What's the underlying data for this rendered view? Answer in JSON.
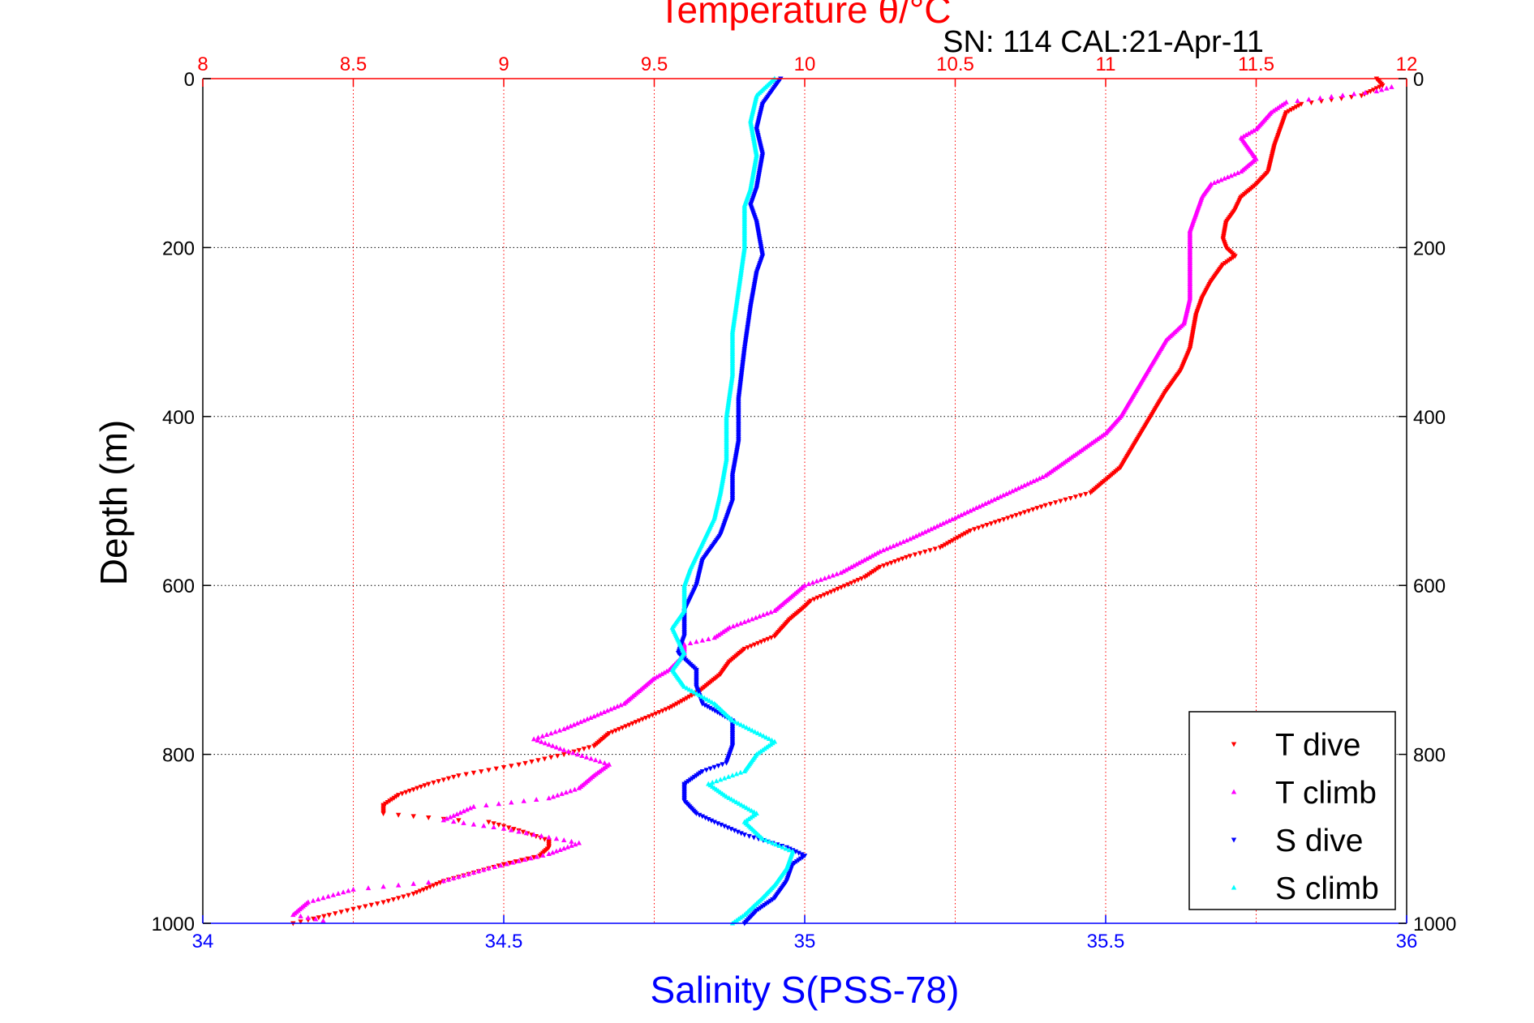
{
  "chart_data": {
    "type": "scatter",
    "title": "Temperature θ/°C",
    "annotation": "SN: 114  CAL:21-Apr-11",
    "ylabel": "Depth (m)",
    "xlabel_bottom": "Salinity S(PSS-78)",
    "xlabel_top": "Temperature θ/°C",
    "ylim": [
      0,
      1000
    ],
    "y_reversed": true,
    "y_ticks": [
      0,
      200,
      400,
      600,
      800,
      1000
    ],
    "x_bottom_lim": [
      34,
      36
    ],
    "x_bottom_ticks": [
      34,
      34.5,
      35,
      35.5,
      36
    ],
    "x_top_lim": [
      8,
      12
    ],
    "x_top_ticks": [
      8,
      8.5,
      9,
      9.5,
      10,
      10.5,
      11,
      11.5,
      12
    ],
    "grid": true,
    "legend_position": "bottom-right",
    "colors": {
      "temperature_axis": "#ff0000",
      "salinity_axis": "#0000ff",
      "t_dive": "#ff0000",
      "t_climb": "#ff00ff",
      "s_dive": "#0000ff",
      "s_climb": "#00ffff",
      "grid_temperature": "#ff0000",
      "grid_depth": "#000000"
    },
    "series": [
      {
        "name": "T dive",
        "axis": "top",
        "marker": "triangle-down",
        "color": "#ff0000",
        "points": [
          [
            11.9,
            0
          ],
          [
            11.92,
            8
          ],
          [
            11.85,
            20
          ],
          [
            11.65,
            30
          ],
          [
            11.6,
            40
          ],
          [
            11.58,
            60
          ],
          [
            11.56,
            80
          ],
          [
            11.54,
            110
          ],
          [
            11.5,
            125
          ],
          [
            11.45,
            140
          ],
          [
            11.43,
            155
          ],
          [
            11.4,
            170
          ],
          [
            11.39,
            190
          ],
          [
            11.4,
            200
          ],
          [
            11.43,
            210
          ],
          [
            11.39,
            220
          ],
          [
            11.35,
            240
          ],
          [
            11.32,
            260
          ],
          [
            11.3,
            280
          ],
          [
            11.29,
            300
          ],
          [
            11.28,
            320
          ],
          [
            11.25,
            345
          ],
          [
            11.2,
            370
          ],
          [
            11.15,
            400
          ],
          [
            11.1,
            430
          ],
          [
            11.05,
            460
          ],
          [
            10.95,
            490
          ],
          [
            10.8,
            505
          ],
          [
            10.55,
            535
          ],
          [
            10.45,
            555
          ],
          [
            10.35,
            565
          ],
          [
            10.25,
            578
          ],
          [
            10.2,
            590
          ],
          [
            10.02,
            618
          ],
          [
            10.0,
            625
          ],
          [
            9.95,
            640
          ],
          [
            9.9,
            660
          ],
          [
            9.8,
            675
          ],
          [
            9.75,
            690
          ],
          [
            9.72,
            705
          ],
          [
            9.65,
            725
          ],
          [
            9.55,
            745
          ],
          [
            9.45,
            760
          ],
          [
            9.35,
            775
          ],
          [
            9.3,
            790
          ],
          [
            9.2,
            800
          ],
          [
            9.05,
            812
          ],
          [
            8.85,
            825
          ],
          [
            8.75,
            835
          ],
          [
            8.65,
            848
          ],
          [
            8.6,
            860
          ],
          [
            8.6,
            870
          ],
          [
            8.85,
            878
          ],
          [
            8.95,
            880
          ],
          [
            9.05,
            890
          ],
          [
            9.15,
            902
          ],
          [
            9.15,
            910
          ],
          [
            9.12,
            920
          ],
          [
            9.0,
            930
          ],
          [
            8.9,
            940
          ],
          [
            8.8,
            950
          ],
          [
            8.7,
            965
          ],
          [
            8.6,
            975
          ],
          [
            8.5,
            983
          ],
          [
            8.42,
            990
          ],
          [
            8.35,
            996
          ],
          [
            8.3,
            1000
          ]
        ]
      },
      {
        "name": "T climb",
        "axis": "top",
        "marker": "triangle-up",
        "color": "#ff00ff",
        "points": [
          [
            11.95,
            10
          ],
          [
            11.9,
            15
          ],
          [
            11.6,
            28
          ],
          [
            11.55,
            40
          ],
          [
            11.5,
            60
          ],
          [
            11.45,
            70
          ],
          [
            11.5,
            95
          ],
          [
            11.45,
            110
          ],
          [
            11.35,
            125
          ],
          [
            11.32,
            140
          ],
          [
            11.3,
            160
          ],
          [
            11.28,
            180
          ],
          [
            11.28,
            200
          ],
          [
            11.28,
            230
          ],
          [
            11.28,
            260
          ],
          [
            11.26,
            290
          ],
          [
            11.2,
            310
          ],
          [
            11.15,
            340
          ],
          [
            11.1,
            370
          ],
          [
            11.05,
            400
          ],
          [
            11.0,
            420
          ],
          [
            10.9,
            445
          ],
          [
            10.8,
            470
          ],
          [
            10.65,
            495
          ],
          [
            10.5,
            520
          ],
          [
            10.35,
            545
          ],
          [
            10.25,
            560
          ],
          [
            10.12,
            585
          ],
          [
            10.0,
            600
          ],
          [
            9.9,
            630
          ],
          [
            9.75,
            650
          ],
          [
            9.7,
            662
          ],
          [
            9.6,
            670
          ],
          [
            9.6,
            682
          ],
          [
            9.55,
            700
          ],
          [
            9.5,
            710
          ],
          [
            9.45,
            725
          ],
          [
            9.4,
            740
          ],
          [
            9.3,
            755
          ],
          [
            9.2,
            770
          ],
          [
            9.1,
            782
          ],
          [
            9.2,
            795
          ],
          [
            9.35,
            812
          ],
          [
            9.3,
            825
          ],
          [
            9.25,
            840
          ],
          [
            9.15,
            852
          ],
          [
            8.9,
            862
          ],
          [
            8.8,
            878
          ],
          [
            9.0,
            888
          ],
          [
            9.1,
            895
          ],
          [
            9.25,
            905
          ],
          [
            9.15,
            918
          ],
          [
            8.95,
            935
          ],
          [
            8.8,
            950
          ],
          [
            8.5,
            960
          ],
          [
            8.35,
            975
          ],
          [
            8.3,
            990
          ],
          [
            8.4,
            997
          ]
        ]
      },
      {
        "name": "S dive",
        "axis": "bottom",
        "marker": "triangle-down",
        "color": "#0000ff",
        "points": [
          [
            34.96,
            0
          ],
          [
            34.93,
            30
          ],
          [
            34.92,
            60
          ],
          [
            34.93,
            90
          ],
          [
            34.92,
            130
          ],
          [
            34.91,
            150
          ],
          [
            34.92,
            170
          ],
          [
            34.93,
            210
          ],
          [
            34.92,
            230
          ],
          [
            34.91,
            270
          ],
          [
            34.9,
            320
          ],
          [
            34.89,
            380
          ],
          [
            34.89,
            430
          ],
          [
            34.88,
            470
          ],
          [
            34.88,
            500
          ],
          [
            34.86,
            540
          ],
          [
            34.83,
            570
          ],
          [
            34.82,
            600
          ],
          [
            34.8,
            630
          ],
          [
            34.8,
            660
          ],
          [
            34.79,
            680
          ],
          [
            34.82,
            700
          ],
          [
            34.82,
            720
          ],
          [
            34.83,
            740
          ],
          [
            34.88,
            760
          ],
          [
            34.88,
            790
          ],
          [
            34.87,
            810
          ],
          [
            34.83,
            820
          ],
          [
            34.8,
            835
          ],
          [
            34.8,
            855
          ],
          [
            34.82,
            870
          ],
          [
            34.85,
            880
          ],
          [
            34.9,
            895
          ],
          [
            34.97,
            910
          ],
          [
            35.0,
            920
          ],
          [
            34.98,
            930
          ],
          [
            34.97,
            950
          ],
          [
            34.95,
            970
          ],
          [
            34.92,
            985
          ],
          [
            34.9,
            1000
          ]
        ]
      },
      {
        "name": "S climb",
        "axis": "bottom",
        "marker": "triangle-up",
        "color": "#00ffff",
        "points": [
          [
            34.95,
            0
          ],
          [
            34.92,
            20
          ],
          [
            34.91,
            50
          ],
          [
            34.92,
            90
          ],
          [
            34.91,
            130
          ],
          [
            34.9,
            150
          ],
          [
            34.9,
            200
          ],
          [
            34.89,
            250
          ],
          [
            34.88,
            300
          ],
          [
            34.88,
            350
          ],
          [
            34.87,
            400
          ],
          [
            34.87,
            450
          ],
          [
            34.86,
            490
          ],
          [
            34.85,
            520
          ],
          [
            34.83,
            550
          ],
          [
            34.81,
            580
          ],
          [
            34.8,
            600
          ],
          [
            34.8,
            630
          ],
          [
            34.78,
            650
          ],
          [
            34.8,
            680
          ],
          [
            34.78,
            700
          ],
          [
            34.8,
            720
          ],
          [
            34.85,
            740
          ],
          [
            34.88,
            760
          ],
          [
            34.95,
            785
          ],
          [
            34.92,
            800
          ],
          [
            34.9,
            820
          ],
          [
            34.84,
            835
          ],
          [
            34.87,
            850
          ],
          [
            34.92,
            870
          ],
          [
            34.9,
            880
          ],
          [
            34.93,
            900
          ],
          [
            34.98,
            915
          ],
          [
            34.97,
            935
          ],
          [
            34.95,
            955
          ],
          [
            34.93,
            970
          ],
          [
            34.9,
            990
          ],
          [
            34.88,
            1000
          ]
        ]
      }
    ]
  }
}
